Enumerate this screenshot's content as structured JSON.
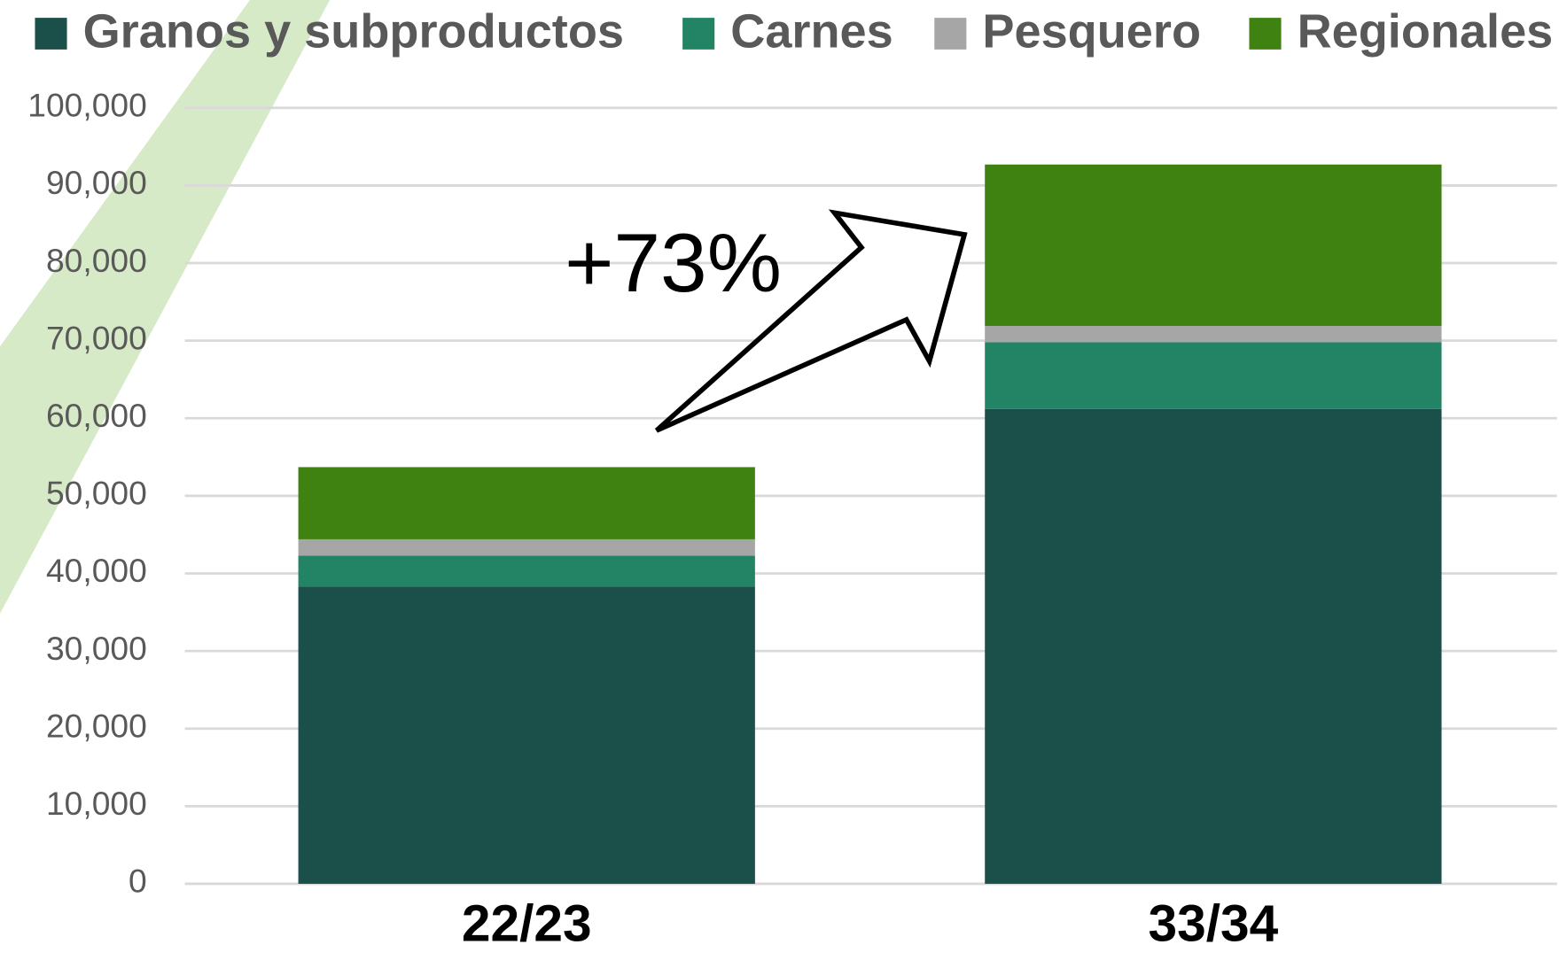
{
  "chart_data": {
    "type": "stacked_bar",
    "categories": [
      "22/23",
      "33/34"
    ],
    "series": [
      {
        "name": "Granos y subproductos",
        "color": "#1b4f4a",
        "values": [
          38300,
          61200
        ]
      },
      {
        "name": "Carnes",
        "color": "#238465",
        "values": [
          4000,
          8600
        ]
      },
      {
        "name": "Pesquero",
        "color": "#a6a6a6",
        "values": [
          2100,
          2100
        ]
      },
      {
        "name": "Regionales",
        "color": "#3f8212",
        "values": [
          9300,
          20800
        ]
      }
    ],
    "annotation": "+73%",
    "ylim": [
      0,
      100000
    ],
    "yticks": [
      0,
      {
        "value": 10000,
        "label": "10,000"
      },
      {
        "value": 20000,
        "label": "20,000"
      },
      {
        "value": 30000,
        "label": "30,000"
      },
      {
        "value": 40000,
        "label": "40,000"
      },
      {
        "value": 50000,
        "label": "50,000"
      },
      {
        "value": 60000,
        "label": "60,000"
      },
      {
        "value": 70000,
        "label": "70,000"
      },
      {
        "value": 80000,
        "label": "80,000"
      },
      {
        "value": 90000,
        "label": "90,000"
      },
      {
        "value": 100000,
        "label": "100,000"
      }
    ],
    "grid": true,
    "legend": "top"
  }
}
